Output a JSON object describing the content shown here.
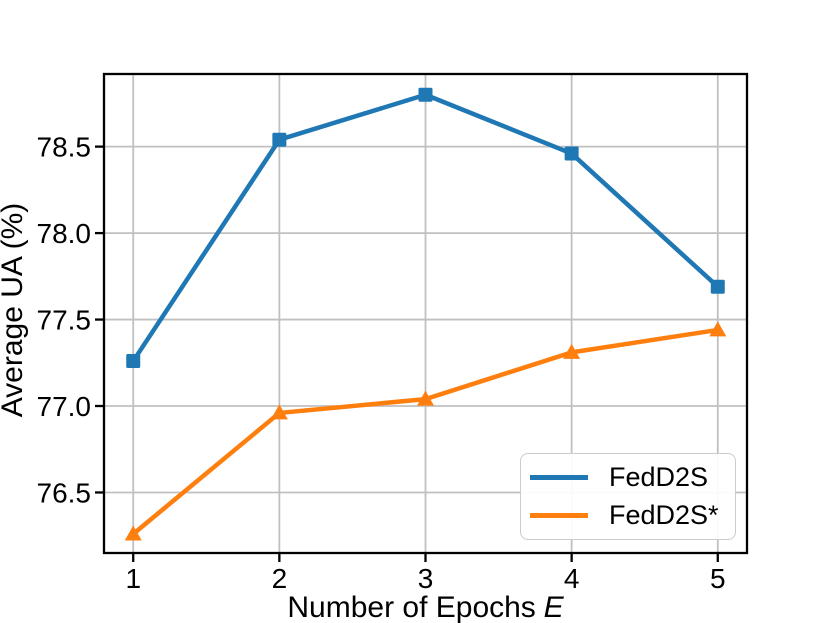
{
  "chart_data": {
    "type": "line",
    "title": "",
    "xlabel": "Number of Epochs E",
    "xlabel_prefix": "Number of Epochs",
    "xlabel_var": "E",
    "ylabel": "Average UA (%)",
    "x": [
      1,
      2,
      3,
      4,
      5
    ],
    "xtick_labels": [
      "1",
      "2",
      "3",
      "4",
      "5"
    ],
    "ytick_values": [
      76.5,
      77.0,
      77.5,
      78.0,
      78.5
    ],
    "ytick_labels": [
      "76.5",
      "77.0",
      "77.5",
      "78.0",
      "78.5"
    ],
    "xlim": [
      0.8,
      5.2
    ],
    "ylim": [
      76.15,
      78.92
    ],
    "grid": true,
    "legend_position": "lower right",
    "series": [
      {
        "name": "FedD2S",
        "color": "#1f77b4",
        "marker": "square",
        "values": [
          77.26,
          78.54,
          78.8,
          78.46,
          77.69
        ]
      },
      {
        "name": "FedD2S*",
        "color": "#ff7f0e",
        "marker": "triangle-up",
        "values": [
          76.26,
          76.96,
          77.04,
          77.31,
          77.44
        ]
      }
    ],
    "colors": {
      "grid": "#c0c0c0",
      "axis": "#000000",
      "background": "#ffffff"
    }
  }
}
